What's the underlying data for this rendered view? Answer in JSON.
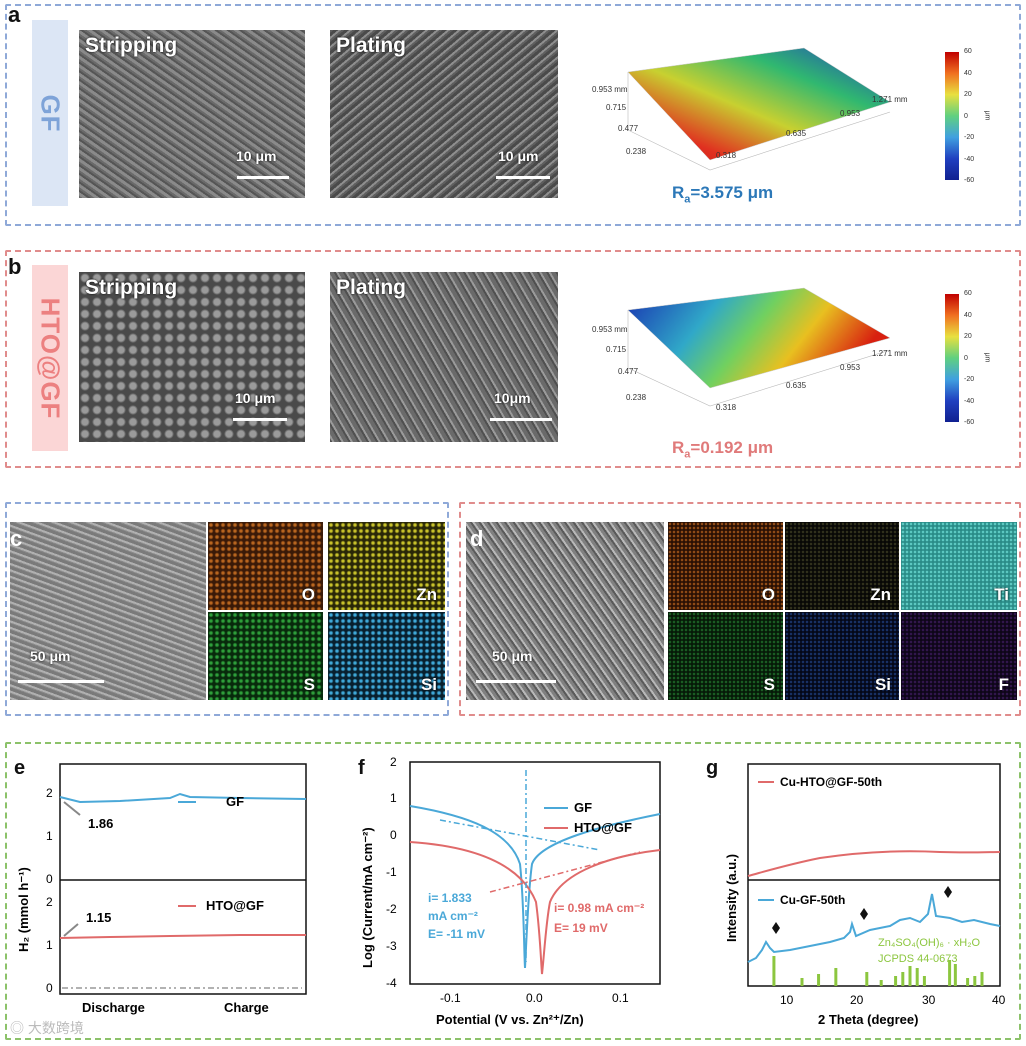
{
  "panel_a": {
    "letter": "a",
    "side_label": "GF",
    "sem_labels": [
      "Stripping",
      "Plating"
    ],
    "scale_labels": [
      "10 μm",
      "10 μm"
    ],
    "map3d": {
      "y_ticks": [
        "0.953 mm",
        "0.715",
        "0.477",
        "0.238"
      ],
      "x_ticks": [
        "0.318",
        "0.635",
        "0.953",
        "1.271 mm"
      ],
      "colorbar_ticks": [
        "60",
        "40",
        "20",
        "0",
        "-20",
        "-40",
        "-60"
      ],
      "colorbar_unit": "μm"
    },
    "ra_prefix": "R",
    "ra_sub": "a",
    "ra_value": "=3.575 μm",
    "ra_color": "#2c78b8"
  },
  "panel_b": {
    "letter": "b",
    "side_label": "HTO@GF",
    "sem_labels": [
      "Stripping",
      "Plating"
    ],
    "scale_labels": [
      "10 μm",
      "10μm"
    ],
    "map3d": {
      "y_ticks": [
        "0.953 mm",
        "0.715",
        "0.477",
        "0.238"
      ],
      "x_ticks": [
        "0.318",
        "0.635",
        "0.953",
        "1.271 mm"
      ],
      "colorbar_ticks": [
        "60",
        "40",
        "20",
        "0",
        "-20",
        "-40",
        "-60"
      ],
      "colorbar_unit": "μm"
    },
    "ra_prefix": "R",
    "ra_sub": "a",
    "ra_value": "=0.192 μm",
    "ra_color": "#e07a7a"
  },
  "panel_c": {
    "letter": "c",
    "scale_label": "50 μm",
    "maps": [
      {
        "label": "O",
        "color": "#b8651f"
      },
      {
        "label": "Zn",
        "color": "#c7c12a"
      },
      {
        "label": "S",
        "color": "#2e9e3a"
      },
      {
        "label": "Si",
        "color": "#3fa8d8"
      }
    ]
  },
  "panel_d": {
    "letter": "d",
    "scale_label": "50 μm",
    "maps": [
      {
        "label": "O",
        "color": "#a8591a"
      },
      {
        "label": "Zn",
        "color": "#3a3a22"
      },
      {
        "label": "Ti",
        "color": "#3fb5b0"
      },
      {
        "label": "S",
        "color": "#1f6e2a"
      },
      {
        "label": "Si",
        "color": "#1d3a78"
      },
      {
        "label": "F",
        "color": "#3a1a5a"
      }
    ]
  },
  "panel_e": {
    "letter": "e",
    "ylabel": "H₂ (mmol h⁻¹)",
    "top_legend": "GF",
    "top_annotation": "1.86",
    "bottom_legend": "HTO@GF",
    "bottom_annotation": "1.15",
    "x_labels": [
      "Discharge",
      "Charge"
    ],
    "yticks_top": [
      "0",
      "1",
      "2"
    ],
    "yticks_bottom": [
      "0",
      "1",
      "2"
    ]
  },
  "panel_f": {
    "letter": "f",
    "ylabel": "Log (Current/mA cm⁻²)",
    "xlabel": "Potential (V  vs. Zn²⁺/Zn)",
    "legend": [
      "GF",
      "HTO@GF"
    ],
    "gf_annotation": [
      "i= 1.833",
      "mA cm⁻²",
      "E= -11 mV"
    ],
    "hto_annotation": [
      "i= 0.98 mA cm⁻²",
      "E= 19 mV"
    ],
    "yticks": [
      "2",
      "1",
      "0",
      "-1",
      "-2",
      "-3",
      "-4"
    ],
    "xticks": [
      "-0.1",
      "0.0",
      "0.1"
    ]
  },
  "panel_g": {
    "letter": "g",
    "ylabel": "Intensity (a.u.)",
    "xlabel": "2 Theta (degree)",
    "top_legend": "Cu-HTO@GF-50th",
    "bottom_legend": "Cu-GF-50th",
    "ref_line1": "Zn₄SO₄(OH)₆ · xH₂O",
    "ref_line2": "JCPDS 44-0673",
    "xticks": [
      "10",
      "20",
      "30",
      "40"
    ]
  },
  "chart_data": [
    {
      "type": "line",
      "title": "",
      "xlabel": "",
      "ylabel": "H2 (mmol h-1)",
      "x_segments": [
        "Discharge",
        "Charge"
      ],
      "series": [
        {
          "name": "GF",
          "color": "#4aa8d8",
          "annotated_value": 1.86,
          "approx_level": 1.86
        },
        {
          "name": "HTO@GF",
          "color": "#e06a6a",
          "annotated_value": 1.15,
          "approx_level": 1.2
        }
      ],
      "ylim": [
        0,
        2.5
      ]
    },
    {
      "type": "line",
      "title": "",
      "xlabel": "Potential (V vs. Zn2+/Zn)",
      "ylabel": "Log (Current/mA cm-2)",
      "xlim": [
        -0.15,
        0.15
      ],
      "ylim": [
        -4,
        2
      ],
      "series": [
        {
          "name": "GF",
          "color": "#4aa8d8",
          "i_corr": "1.833 mA cm-2",
          "E_corr_mV": -11
        },
        {
          "name": "HTO@GF",
          "color": "#e06a6a",
          "i_corr": "0.98 mA cm-2",
          "E_corr_mV": 19
        }
      ]
    },
    {
      "type": "line",
      "title": "",
      "xlabel": "2 Theta (degree)",
      "ylabel": "Intensity (a.u.)",
      "xlim": [
        5,
        40
      ],
      "series": [
        {
          "name": "Cu-HTO@GF-50th",
          "color": "#e06a6a"
        },
        {
          "name": "Cu-GF-50th",
          "color": "#4aa8d8",
          "marked_peaks": [
            8.5,
            21,
            32.5
          ]
        }
      ],
      "reference": {
        "name": "Zn4SO4(OH)6 · xH2O JCPDS 44-0673",
        "color": "#8cc63f",
        "peaks": [
          8.6,
          12.5,
          14.8,
          17.2,
          21.5,
          23.5,
          25.5,
          26.5,
          27.5,
          28.5,
          29.5,
          33,
          33.8,
          35.5,
          36.5,
          37.5
        ]
      }
    }
  ]
}
